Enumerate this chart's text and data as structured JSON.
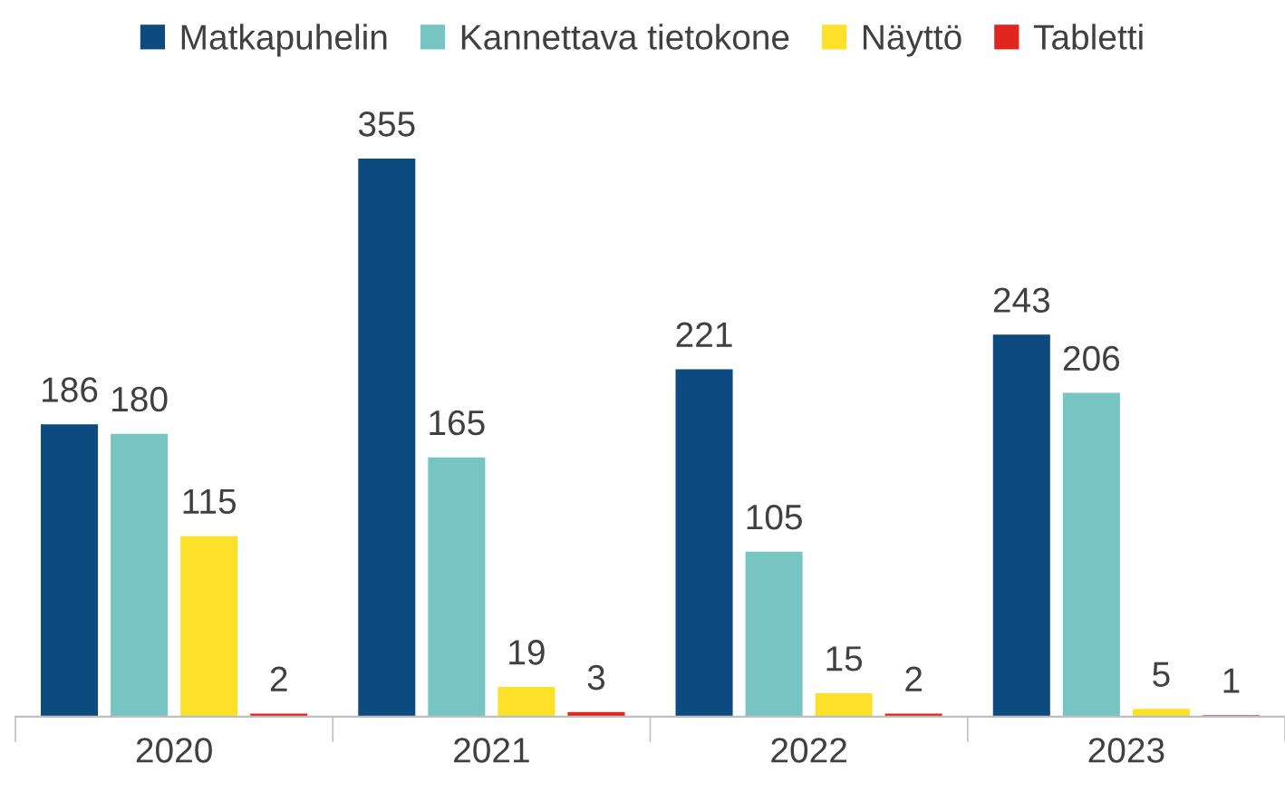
{
  "chart_data": {
    "type": "bar",
    "categories": [
      "2020",
      "2021",
      "2022",
      "2023"
    ],
    "series": [
      {
        "name": "Matkapuhelin",
        "color": "#0d4a80",
        "values": [
          186,
          355,
          221,
          243
        ]
      },
      {
        "name": "Kannettava tietokone",
        "color": "#76c5c3",
        "values": [
          180,
          165,
          105,
          206
        ]
      },
      {
        "name": "Näyttö",
        "color": "#fde02a",
        "values": [
          115,
          19,
          15,
          5
        ]
      },
      {
        "name": "Tabletti",
        "color": "#e0261f",
        "values": [
          2,
          3,
          2,
          1
        ]
      }
    ],
    "data_labels": true,
    "legend": "top",
    "grid": false,
    "tick_labels": "x"
  }
}
